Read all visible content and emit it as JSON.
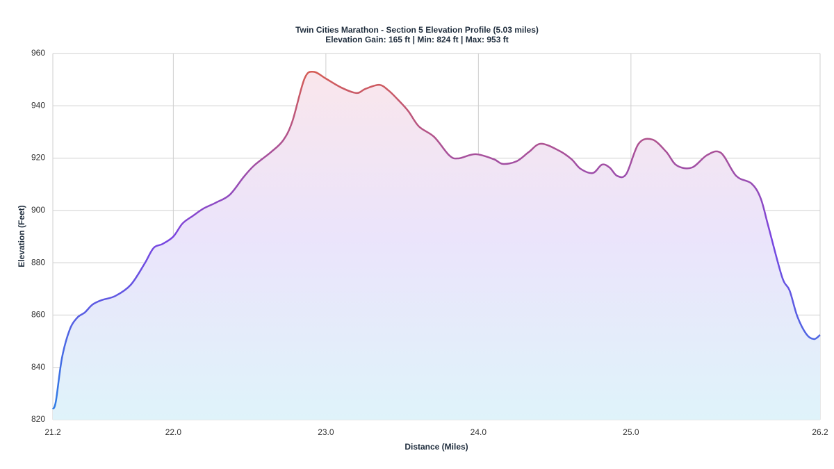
{
  "chart_data": {
    "type": "area-line",
    "title": "Twin Cities Marathon - Section 5 Elevation Profile (5.03 miles)",
    "subtitle": "Elevation Gain: 165 ft | Min: 824 ft | Max: 953 ft",
    "x_label": "Distance (Miles)",
    "y_label": "Elevation (Feet)",
    "xlim": [
      21.21,
      26.24
    ],
    "xticks": [
      {
        "value": 21.21,
        "label": "21.2"
      },
      {
        "value": 22,
        "label": "22.0"
      },
      {
        "value": 23,
        "label": "23.0"
      },
      {
        "value": 24,
        "label": "24.0"
      },
      {
        "value": 25,
        "label": "25.0"
      },
      {
        "value": 26.24,
        "label": "26.2"
      }
    ],
    "ylim": [
      820,
      960
    ],
    "yticks": [
      820,
      840,
      860,
      880,
      900,
      920,
      940,
      960
    ],
    "grid": true,
    "line_colors": [
      "#2a80e6",
      "#7a44e0",
      "#df5f45"
    ],
    "fill_colors": [
      "#dff3fa",
      "#ebe4fb",
      "#fbe6ea"
    ],
    "x": [
      21.21,
      21.23,
      21.27,
      21.32,
      21.37,
      21.42,
      21.47,
      21.53,
      21.62,
      21.72,
      21.81,
      21.87,
      21.93,
      22.0,
      22.06,
      22.13,
      22.2,
      22.28,
      22.37,
      22.46,
      22.53,
      22.64,
      22.72,
      22.78,
      22.86,
      22.92,
      23.0,
      23.1,
      23.2,
      23.26,
      23.35,
      23.41,
      23.47,
      23.54,
      23.61,
      23.71,
      23.81,
      23.87,
      23.98,
      24.1,
      24.16,
      24.25,
      24.33,
      24.41,
      24.53,
      24.61,
      24.67,
      24.75,
      24.81,
      24.86,
      24.91,
      24.97,
      25.05,
      25.14,
      25.23,
      25.3,
      25.4,
      25.5,
      25.59,
      25.69,
      25.79,
      25.85,
      25.9,
      25.99,
      26.04,
      26.09,
      26.15,
      26.2,
      26.24
    ],
    "values": [
      824,
      827,
      843.6,
      854.3,
      859,
      861,
      864,
      865.7,
      867.3,
      871.5,
      879.5,
      885.6,
      887.2,
      890,
      895,
      898,
      900.8,
      903,
      906,
      912.7,
      917.2,
      922.3,
      926.8,
      934,
      950.4,
      953,
      950.4,
      947,
      944.9,
      946.5,
      948,
      945.9,
      942.5,
      938,
      932.1,
      928.1,
      921,
      919.9,
      921.5,
      919.6,
      917.8,
      918.8,
      922.3,
      925.5,
      922.8,
      919.6,
      915.9,
      914.3,
      917.5,
      916.4,
      913.2,
      914,
      925.5,
      927.1,
      922.5,
      917.2,
      916.4,
      921.2,
      922,
      913.2,
      910.3,
      904.7,
      894.1,
      874.7,
      869.4,
      859.6,
      852.7,
      850.8,
      852.4
    ]
  }
}
